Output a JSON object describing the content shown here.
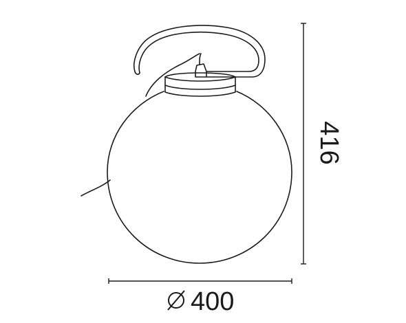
{
  "diagram": {
    "subject": "globe-lamp-technical-drawing",
    "line_color": "#1a1a1a",
    "dimensions": {
      "height": {
        "value": "416"
      },
      "diameter": {
        "symbol": "⌀",
        "value": "400"
      }
    }
  }
}
